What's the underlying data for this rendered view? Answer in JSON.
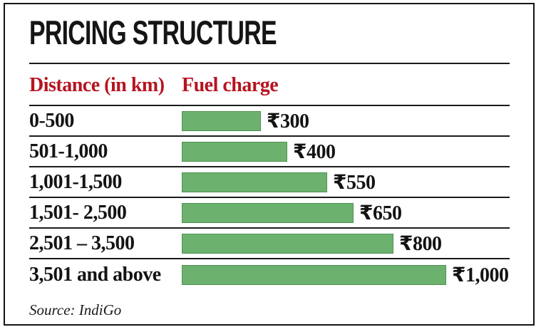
{
  "title": "PRICING STRUCTURE",
  "header": {
    "distance_label": "Distance (in km)",
    "fuel_label": "Fuel charge"
  },
  "source": "Source: IndiGo",
  "colors": {
    "bar_fill": "#6cb26e",
    "bar_border": "#4e9153",
    "header_red": "#b61420",
    "frame_black": "#141414"
  },
  "chart_data": {
    "type": "bar",
    "orientation": "horizontal",
    "title": "PRICING STRUCTURE",
    "category_header": "Distance (in km)",
    "value_header": "Fuel charge",
    "categories": [
      "0-500",
      "501-1,000",
      "1,001-1,500",
      "1,501- 2,500",
      "2,501 – 3,500",
      "3,501 and above"
    ],
    "values": [
      300,
      400,
      550,
      650,
      800,
      1000
    ],
    "value_labels": [
      "₹300",
      "₹400",
      "₹550",
      "₹650",
      "₹800",
      "₹1,000"
    ],
    "value_unit": "INR",
    "xlim": [
      0,
      1000
    ],
    "grid": false,
    "legend": false,
    "source": "Source: IndiGo"
  }
}
